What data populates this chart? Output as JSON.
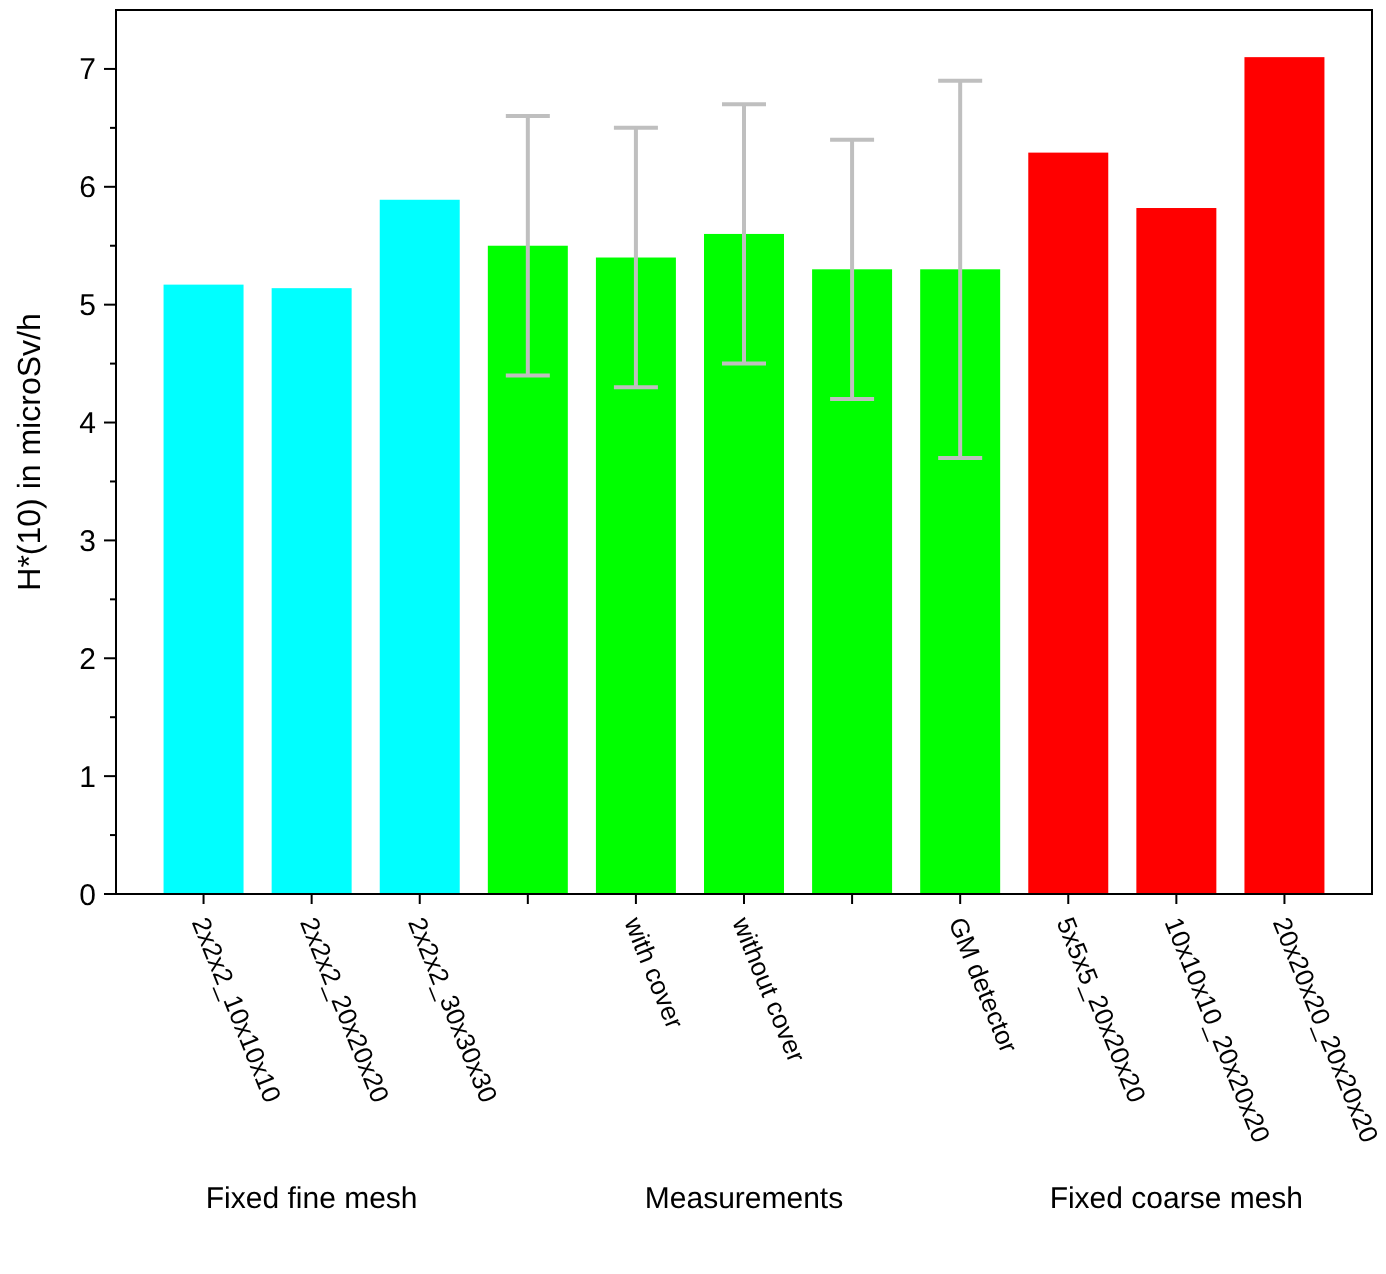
{
  "chart_data": {
    "type": "bar",
    "ylabel": "H*(10) in microSv/h",
    "categories": [
      "2x2x2_10x10x10",
      "2x2x2_20x20x20",
      "2x2x2_30x30x30",
      null,
      "with cover",
      "without cover",
      null,
      "GM detector",
      "5x5x5_20x20x20",
      "10x10x10_20x20x20",
      "20x20x20_20x20x20"
    ],
    "values": [
      5.17,
      5.14,
      5.89,
      5.5,
      5.4,
      5.6,
      5.3,
      5.3,
      6.29,
      5.82,
      7.1
    ],
    "colors": [
      "#00ffff",
      "#00ffff",
      "#00ffff",
      "#00ff00",
      "#00ff00",
      "#00ff00",
      "#00ff00",
      "#00ff00",
      "#ff0000",
      "#ff0000",
      "#ff0000"
    ],
    "errors": [
      null,
      null,
      null,
      1.1,
      1.1,
      1.1,
      1.1,
      1.6,
      null,
      null,
      null
    ],
    "ylim": [
      0,
      7.5
    ],
    "yticks": [
      0,
      1,
      2,
      3,
      4,
      5,
      6,
      7
    ],
    "grid": false,
    "annotations": [
      "Fixed fine mesh",
      "Measurements",
      "Fixed coarse mesh"
    ]
  }
}
